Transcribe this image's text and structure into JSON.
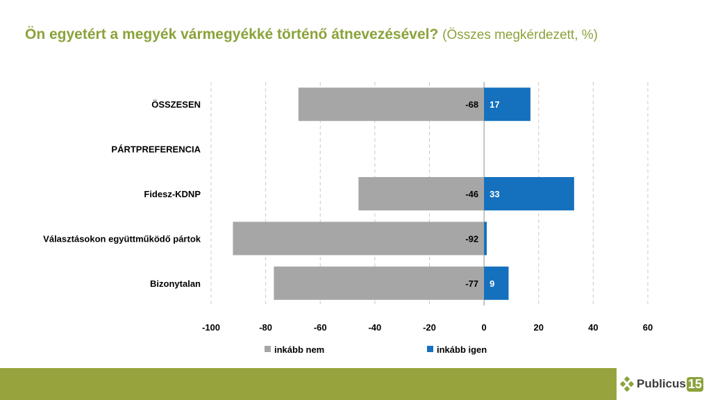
{
  "header": {
    "title": "Ön egyetért a megyék vármegyékké történő átnevezésével?",
    "subtitle": "(Összes megkérdezett, %)"
  },
  "colors": {
    "neg": "#a6a6a6",
    "pos": "#1570be",
    "accent": "#8aa33a",
    "footer": "#97a43d"
  },
  "chart_data": {
    "type": "bar",
    "orientation": "horizontal",
    "categories": [
      "ÖSSZESEN",
      "PÁRTPREFERENCIA",
      "Fidesz-KDNP",
      "Választásokon együttműködő pártok",
      "Bizonytalan"
    ],
    "series": [
      {
        "name": "inkább nem",
        "values": [
          -68,
          null,
          -46,
          -92,
          -77
        ]
      },
      {
        "name": "inkább igen",
        "values": [
          17,
          null,
          33,
          1,
          9
        ]
      }
    ],
    "positive_labels": [
      "17",
      "",
      "33",
      "",
      "9"
    ],
    "negative_labels": [
      "-68",
      "",
      "-46",
      "-92",
      "-77"
    ],
    "xlim": [
      -100,
      60
    ],
    "xticks": [
      -100,
      -80,
      -60,
      -40,
      -20,
      0,
      20,
      40,
      60
    ],
    "grid": "vertical dashed",
    "legend": "bottom"
  },
  "logo": {
    "name": "Publicus",
    "number": "15",
    "icon": "diamond-logo-icon"
  }
}
